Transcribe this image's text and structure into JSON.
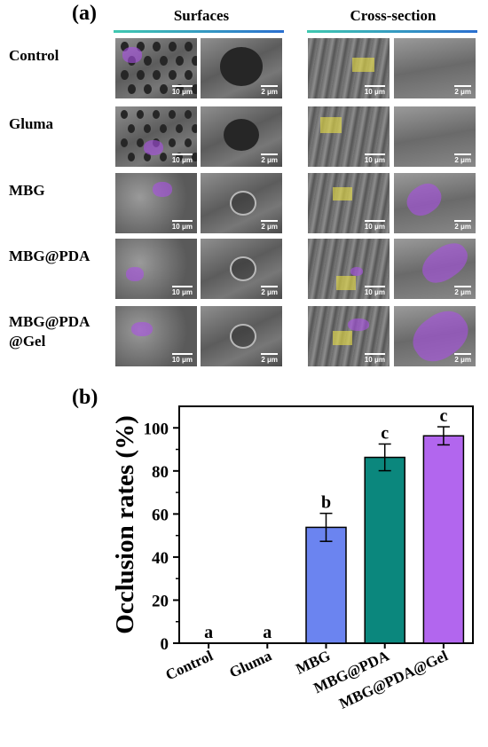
{
  "panel_a": {
    "label": "(a)",
    "columns": [
      "Surfaces",
      "Cross-section"
    ],
    "rows": [
      "Control",
      "Gluma",
      "MBG",
      "MBG@PDA",
      "MBG@PDA\n@Gel"
    ],
    "rows_line1": [
      "Control",
      "Gluma",
      "MBG",
      "MBG@PDA",
      "MBG@PDA"
    ],
    "rows_line2": [
      "",
      "",
      "",
      "",
      "@Gel"
    ],
    "scalebars": [
      "10 μm",
      "2 μm",
      "10 μm",
      "2 μm"
    ]
  },
  "panel_b": {
    "label": "(b)"
  },
  "chart_data": {
    "type": "bar",
    "categories": [
      "Control",
      "Gluma",
      "MBG",
      "MBG@PDA",
      "MBG@PDA@Gel"
    ],
    "values": [
      0,
      0,
      53.8,
      86.3,
      96.3
    ],
    "errors": [
      0,
      0,
      6.5,
      6.2,
      4.2
    ],
    "labels": [
      "a",
      "a",
      "b",
      "c",
      "c"
    ],
    "colors": [
      "#ffffff",
      "#ffffff",
      "#6b84f0",
      "#0b877d",
      "#b266ee"
    ],
    "ylabel": "Occlusion rates (%)",
    "ylim": [
      0,
      110
    ],
    "yticks": [
      0,
      20,
      40,
      60,
      80,
      100
    ],
    "grid": false
  }
}
